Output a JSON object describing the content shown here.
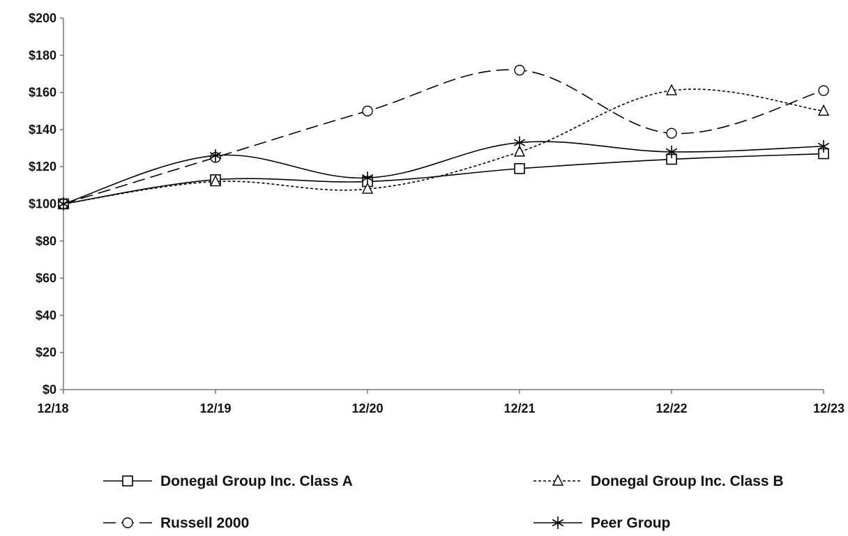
{
  "chart_data": {
    "type": "line",
    "title": "",
    "xlabel": "",
    "ylabel": "",
    "categories": [
      "12/18",
      "12/19",
      "12/20",
      "12/21",
      "12/22",
      "12/23"
    ],
    "ylim": [
      0,
      200
    ],
    "y_ticks": [
      0,
      20,
      40,
      60,
      80,
      100,
      120,
      140,
      160,
      180,
      200
    ],
    "y_tick_labels": [
      "$0",
      "$20",
      "$40",
      "$60",
      "$80",
      "$100",
      "$120",
      "$140",
      "$160",
      "$180",
      "$200"
    ],
    "grid": false,
    "legend_position": "bottom",
    "series": [
      {
        "name": "Donegal Group Inc. Class A",
        "values": [
          100,
          113,
          112,
          119,
          124,
          127
        ],
        "line_style": "solid",
        "marker": "square",
        "color": "#000000"
      },
      {
        "name": "Donegal Group Inc. Class B",
        "values": [
          100,
          112,
          108,
          128,
          161,
          150
        ],
        "line_style": "dotted",
        "marker": "triangle",
        "color": "#000000"
      },
      {
        "name": "Russell 2000",
        "values": [
          100,
          125,
          150,
          172,
          138,
          161
        ],
        "line_style": "dashed",
        "marker": "circle",
        "color": "#000000"
      },
      {
        "name": "Peer Group",
        "values": [
          100,
          126,
          114,
          133,
          128,
          131
        ],
        "line_style": "solid",
        "marker": "star",
        "color": "#000000"
      }
    ]
  }
}
